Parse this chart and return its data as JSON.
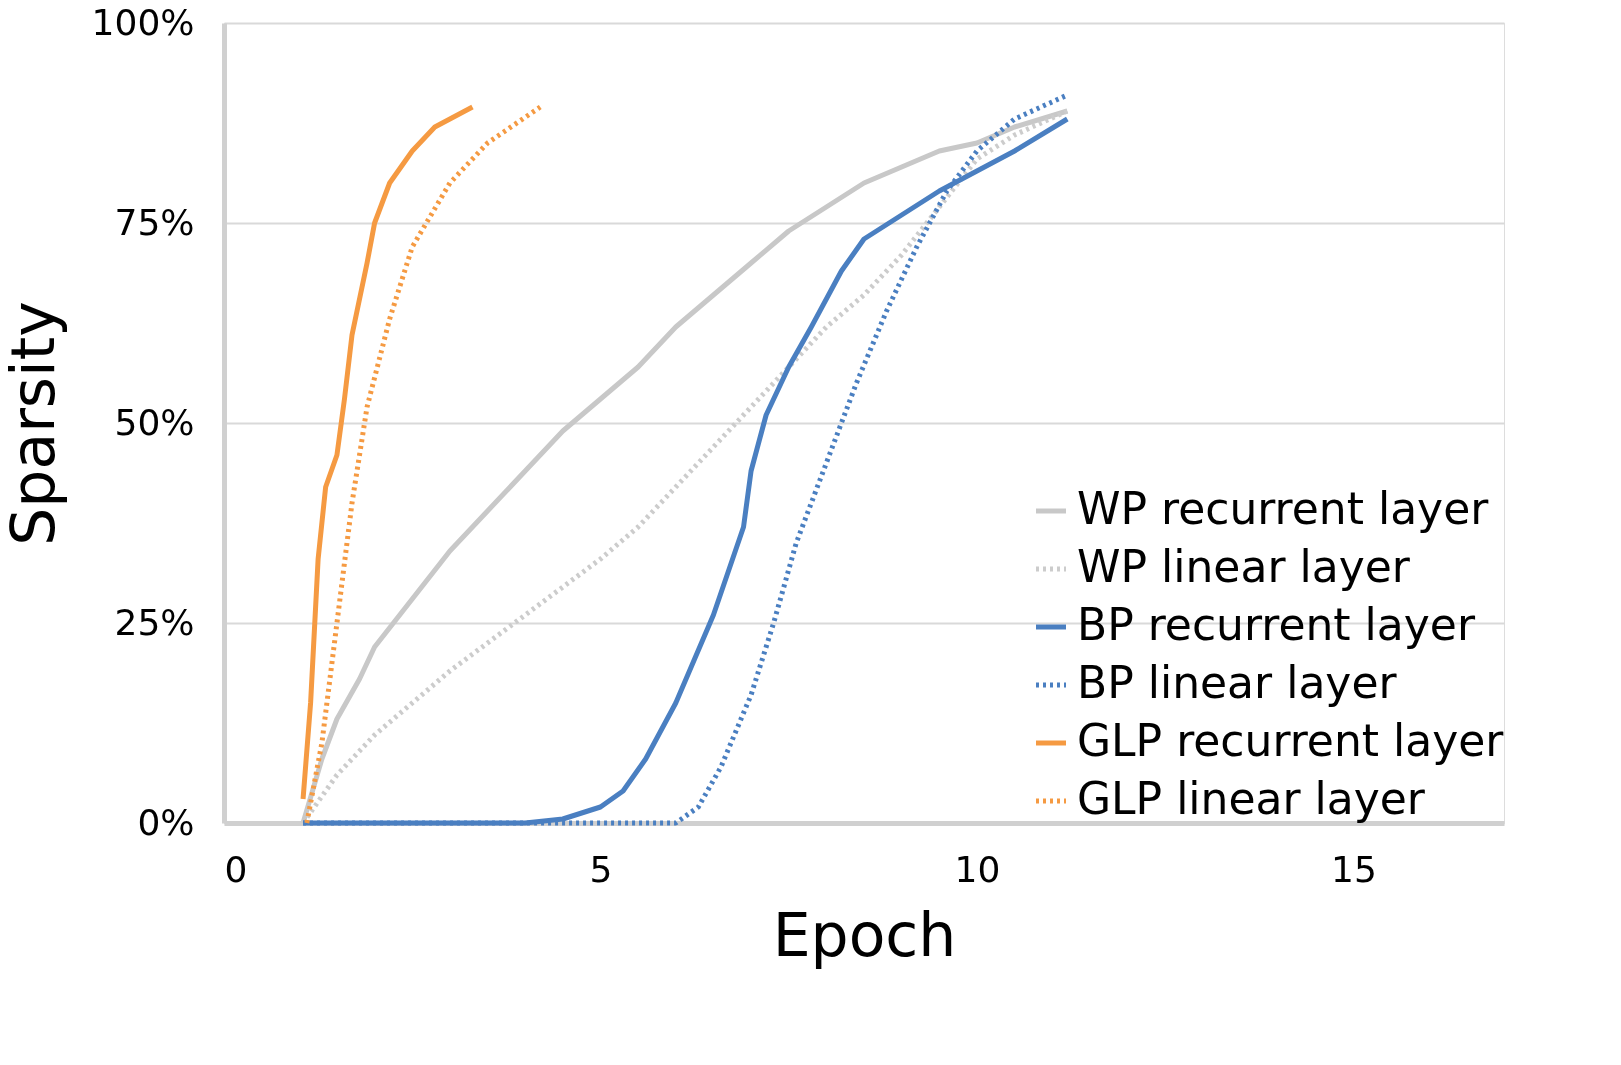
{
  "chart_data": {
    "type": "line",
    "xlabel": "Epoch",
    "ylabel": "Sparsity",
    "xlim": [
      0,
      17
    ],
    "xticks": [
      0,
      5,
      10,
      15
    ],
    "ylim": [
      0,
      100
    ],
    "yticks": [
      {
        "value": 0,
        "label": "0%"
      },
      {
        "value": 25,
        "label": "25%"
      },
      {
        "value": 50,
        "label": "50%"
      },
      {
        "value": 75,
        "label": "75%"
      },
      {
        "value": 100,
        "label": "100%"
      }
    ],
    "grid": "y",
    "legend": "bottom right",
    "marker": "none",
    "series": [
      {
        "name": "WP recurrent layer",
        "color": "#c8c8c8",
        "line_style": "solid",
        "x": [
          1.05,
          1.3,
          1.5,
          1.8,
          2.0,
          2.5,
          3.0,
          3.5,
          4.0,
          4.5,
          5.0,
          5.5,
          6.0,
          6.5,
          7.0,
          7.5,
          8.0,
          8.5,
          9.0,
          9.5,
          10,
          10.5,
          11.2
        ],
        "values": [
          0,
          8,
          13,
          18,
          22,
          28,
          34,
          39,
          44,
          49,
          53,
          57,
          62,
          66,
          70,
          74,
          77,
          80,
          82,
          84,
          85,
          87,
          89
        ]
      },
      {
        "name": "WP linear layer",
        "color": "#cccccc",
        "line_style": "dotted",
        "x": [
          1.05,
          1.5,
          2,
          3,
          4,
          5,
          5.5,
          6,
          6.5,
          7,
          7.5,
          8,
          8.5,
          9,
          9.5,
          10,
          10.5,
          11.2
        ],
        "values": [
          0,
          6,
          11,
          19,
          26,
          33,
          37,
          42,
          47,
          52,
          57,
          62,
          66,
          71,
          77,
          83,
          86,
          89
        ]
      },
      {
        "name": "BP recurrent layer",
        "color": "#4a7fc1",
        "line_style": "solid",
        "x": [
          1.05,
          4,
          4.5,
          5,
          5.3,
          5.6,
          6,
          6.5,
          6.9,
          7.0,
          7.2,
          7.5,
          7.8,
          8.2,
          8.5,
          9,
          9.5,
          10,
          10.5,
          11.2
        ],
        "values": [
          0,
          0,
          0.5,
          2,
          4,
          8,
          15,
          26,
          37,
          44,
          51,
          57,
          62,
          69,
          73,
          76,
          79,
          81.5,
          84,
          88
        ]
      },
      {
        "name": "BP linear layer",
        "color": "#4a7fc1",
        "line_style": "dotted",
        "x": [
          1.05,
          6.0,
          6.3,
          6.6,
          7,
          7.3,
          7.6,
          8,
          8.4,
          8.8,
          9.2,
          9.6,
          10,
          10.5,
          11.2
        ],
        "values": [
          0,
          0,
          2,
          7,
          16,
          25,
          35,
          45,
          55,
          64,
          72,
          79,
          84,
          88,
          91
        ]
      },
      {
        "name": "GLP recurrent layer",
        "color": "#f59a42",
        "line_style": "solid",
        "x": [
          1.05,
          1.15,
          1.25,
          1.35,
          1.5,
          1.6,
          1.7,
          1.9,
          2.0,
          2.2,
          2.5,
          2.8,
          3.0,
          3.3
        ],
        "values": [
          3,
          15,
          33,
          42,
          46,
          53,
          61,
          70,
          75,
          80,
          84,
          87,
          88,
          89.5
        ]
      },
      {
        "name": "GLP linear layer",
        "color": "#f59a42",
        "line_style": "dotted",
        "x": [
          1.1,
          1.3,
          1.5,
          1.7,
          1.9,
          2.2,
          2.5,
          3.0,
          3.5,
          4.2
        ],
        "values": [
          0,
          10,
          25,
          40,
          52,
          63,
          72,
          80,
          85,
          89.5
        ]
      }
    ]
  }
}
